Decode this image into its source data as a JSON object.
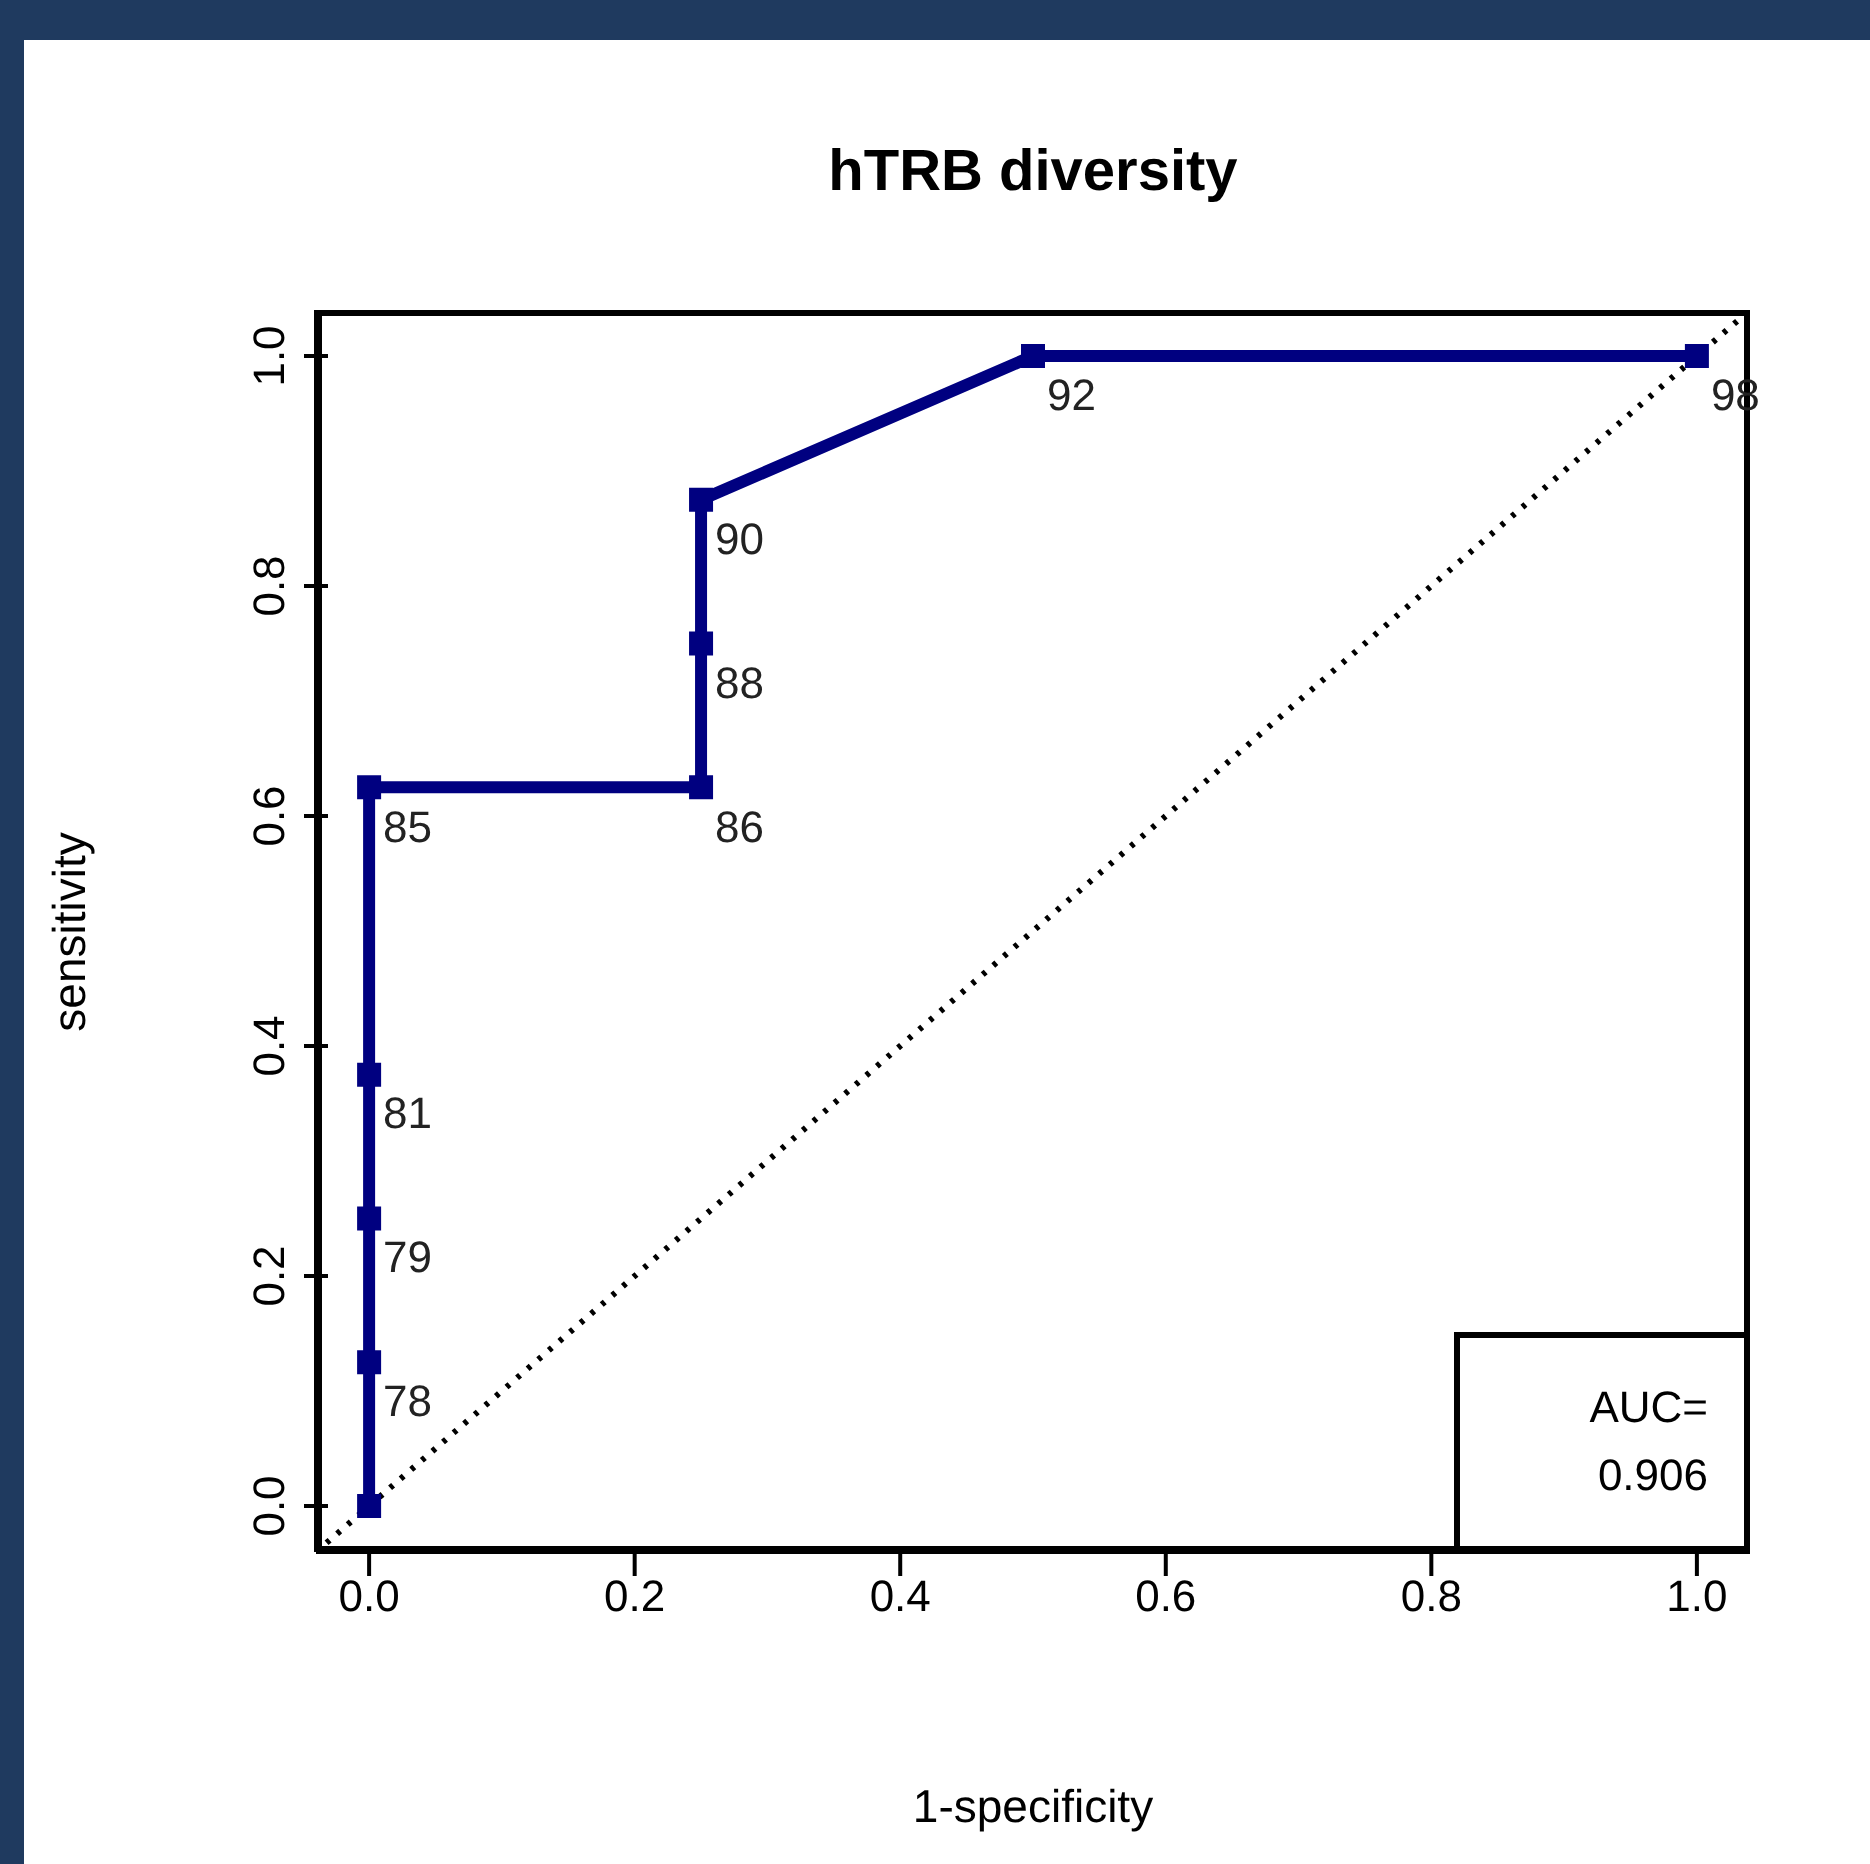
{
  "chart_data": {
    "type": "line",
    "title": "hTRB diversity",
    "xlabel": "1-specificity",
    "ylabel": "sensitivity",
    "xlim": [
      -0.04,
      1.04
    ],
    "ylim": [
      -0.04,
      1.04
    ],
    "xticks": [
      {
        "value": 0,
        "label": "0.0"
      },
      {
        "value": 0.2,
        "label": "0.2"
      },
      {
        "value": 0.4,
        "label": "0.4"
      },
      {
        "value": 0.6,
        "label": "0.6"
      },
      {
        "value": 0.8,
        "label": "0.8"
      },
      {
        "value": 1,
        "label": "1.0"
      }
    ],
    "yticks": [
      {
        "value": 0,
        "label": "0.0"
      },
      {
        "value": 0.2,
        "label": "0.2"
      },
      {
        "value": 0.4,
        "label": "0.4"
      },
      {
        "value": 0.6,
        "label": "0.6"
      },
      {
        "value": 0.8,
        "label": "0.8"
      },
      {
        "value": 1,
        "label": "1.0"
      }
    ],
    "series": [
      {
        "color": "#000080",
        "marker": "square",
        "line_style": "solid",
        "x": [
          0,
          0,
          0,
          0,
          0,
          0.25,
          0.25,
          0.25,
          0.5,
          1
        ],
        "values": [
          0,
          0.125,
          0.25,
          0.375,
          0.625,
          0.625,
          0.75,
          0.875,
          1,
          1
        ]
      },
      {
        "color": "#000000",
        "marker": "none",
        "line_style": "dotted",
        "x": [
          -0.04,
          1.04
        ],
        "values": [
          -0.04,
          1.04
        ]
      }
    ],
    "annotations": [
      {
        "text": "78",
        "x": 0,
        "y": 0.125
      },
      {
        "text": "79",
        "x": 0,
        "y": 0.25
      },
      {
        "text": "81",
        "x": 0,
        "y": 0.375
      },
      {
        "text": "85",
        "x": 0,
        "y": 0.625
      },
      {
        "text": "86",
        "x": 0.25,
        "y": 0.625
      },
      {
        "text": "88",
        "x": 0.25,
        "y": 0.75
      },
      {
        "text": "90",
        "x": 0.25,
        "y": 0.875
      },
      {
        "text": "92",
        "x": 0.5,
        "y": 1
      },
      {
        "text": "98",
        "x": 1,
        "y": 1
      },
      "AUC= 0.906"
    ]
  }
}
